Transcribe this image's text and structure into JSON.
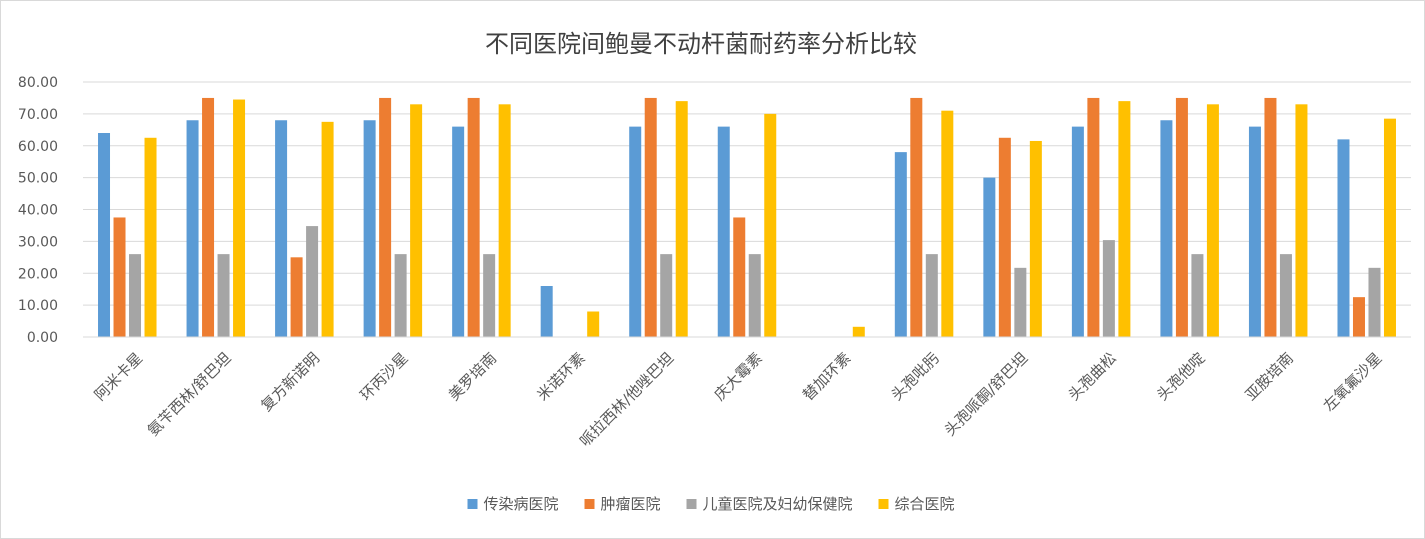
{
  "chart_data": {
    "type": "bar",
    "title": "不同医院间鲍曼不动杆菌耐药率分析比较",
    "xlabel": "",
    "ylabel": "",
    "ylim": [
      0,
      80
    ],
    "yticks": [
      "0.00",
      "10.00",
      "20.00",
      "30.00",
      "40.00",
      "50.00",
      "60.00",
      "70.00",
      "80.00"
    ],
    "grid": true,
    "legend_position": "bottom",
    "categories": [
      "阿米卡星",
      "氨苄西林/舒巴坦",
      "复方新诺明",
      "环丙沙星",
      "美罗培南",
      "米诺环素",
      "哌拉西林/他唑巴坦",
      "庆大霉素",
      "替加环素",
      "头孢吡肟",
      "头孢哌酮/舒巴坦",
      "头孢曲松",
      "头孢他啶",
      "亚胺培南",
      "左氧氟沙星"
    ],
    "series": [
      {
        "name": "传染病医院",
        "color": "#5B9BD5",
        "values": [
          64,
          68,
          68,
          68,
          66,
          16,
          66,
          66,
          0,
          58,
          50,
          66,
          68,
          66,
          62
        ]
      },
      {
        "name": "肿瘤医院",
        "color": "#ED7D31",
        "values": [
          37.5,
          75,
          25,
          75,
          75,
          0,
          75,
          37.5,
          0,
          75,
          62.5,
          75,
          75,
          75,
          12.5
        ]
      },
      {
        "name": "儿童医院及妇幼保健院",
        "color": "#A5A5A5",
        "values": [
          26,
          26,
          34.8,
          26,
          26,
          0,
          26,
          26,
          0,
          26,
          21.7,
          30.4,
          26,
          26,
          21.7
        ]
      },
      {
        "name": "综合医院",
        "color": "#FFC000",
        "values": [
          62.5,
          74.5,
          67.5,
          73,
          73,
          8,
          74,
          70,
          3.2,
          71,
          61.5,
          74,
          73,
          73,
          68.5
        ]
      }
    ]
  }
}
